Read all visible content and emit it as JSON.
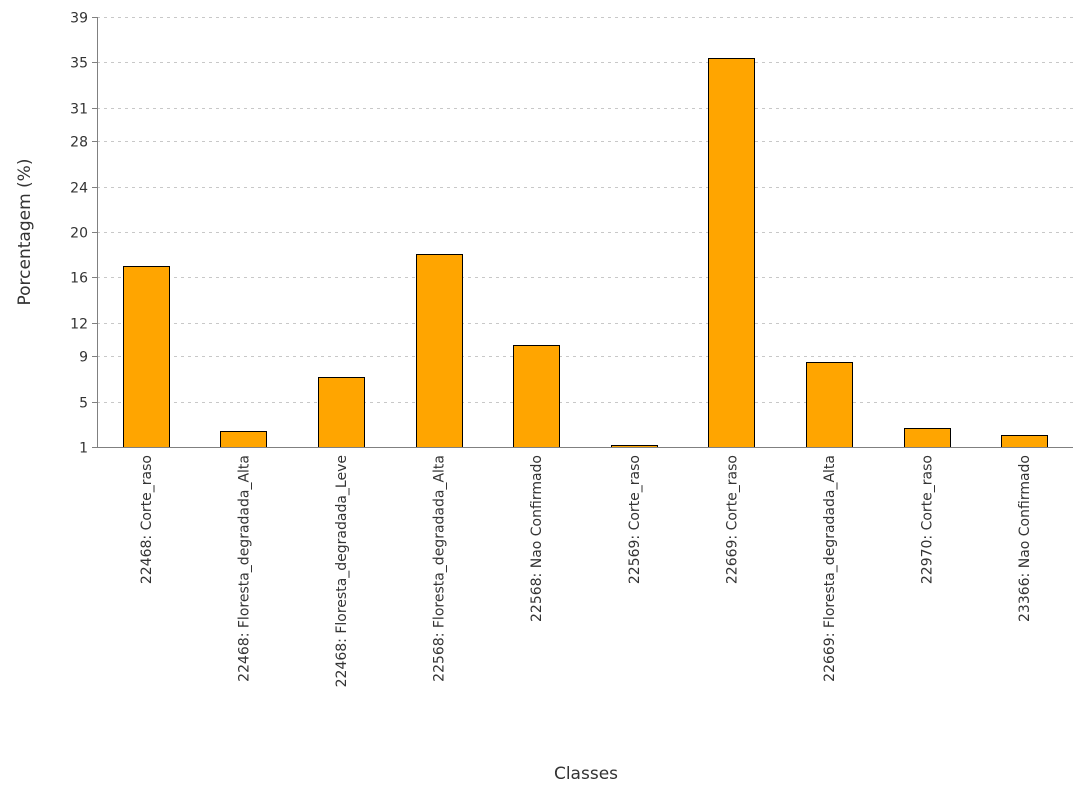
{
  "chart_data": {
    "type": "bar",
    "title": "",
    "xlabel": "Classes",
    "ylabel": "Porcentagem (%)",
    "ylim": [
      1,
      39
    ],
    "yticks": [
      1,
      5,
      9,
      12,
      16,
      20,
      24,
      28,
      31,
      35,
      39
    ],
    "grid": "horizontal",
    "legend": "none",
    "bar_color": "#FFA500",
    "bar_outline_color": "#000000",
    "categories": [
      "22468: Corte_raso",
      "22468: Floresta_degradada_Alta",
      "22468: Floresta_degradada_Leve",
      "22568: Floresta_degradada_Alta",
      "22568: Nao Confirmado",
      "22569: Corte_raso",
      "22669: Corte_raso",
      "22669: Floresta_degradada_Alta",
      "22970: Corte_raso",
      "23366: Nao Confirmado"
    ],
    "values": [
      17.0,
      2.4,
      7.2,
      18.1,
      10.0,
      1.2,
      35.4,
      8.5,
      2.7,
      2.1
    ]
  }
}
